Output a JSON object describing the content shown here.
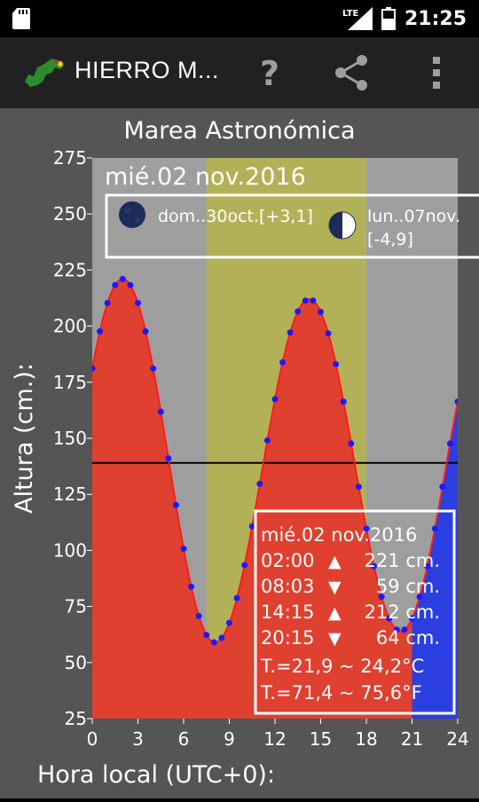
{
  "status_bar": {
    "network": "LTE",
    "time": "21:25"
  },
  "app_bar": {
    "title": "HIERRO M...",
    "logo_icon": "el-hierro-island-logo-icon",
    "help_icon": "help-icon",
    "share_icon": "share-icon",
    "menu_icon": "overflow-menu-icon"
  },
  "colors": {
    "tide_day": "#e0402f",
    "tide_night": "#2b3fe0",
    "curve": "#ff1a1a",
    "points": "#1a1aff",
    "night_band": "#9e9e9e",
    "day_band": "#b3b158"
  },
  "chart_data": {
    "type": "area",
    "title": "Marea Astronómica",
    "date_label": "mié.02 nov.2016",
    "xlabel": "Hora local (UTC+0):",
    "ylabel": "Altura (cm.):",
    "xlim": [
      0,
      24
    ],
    "ylim": [
      25,
      275
    ],
    "xticks": [
      0,
      3,
      6,
      9,
      12,
      15,
      18,
      21,
      24
    ],
    "yticks": [
      25,
      50,
      75,
      100,
      125,
      150,
      175,
      200,
      225,
      250,
      275
    ],
    "mean_level": 139,
    "daylight": [
      7.5,
      18.0
    ],
    "night_fill_from_hour": 21,
    "extremes": [
      {
        "time": 2.0,
        "height": 221
      },
      {
        "time": 8.05,
        "height": 59
      },
      {
        "time": 14.25,
        "height": 212
      },
      {
        "time": 20.25,
        "height": 64
      }
    ],
    "curve_end": {
      "time": 24,
      "height": 168
    },
    "moon_phases": [
      {
        "icon": "new-moon-icon",
        "label": "dom..30oct.[+3,1]"
      },
      {
        "icon": "first-quarter-moon-icon",
        "label_line1": "lun..07nov.",
        "label_line2": "[-4,9]"
      }
    ],
    "info_box": {
      "date": "mié.02 nov.2016",
      "rows": [
        {
          "time": "02:00",
          "symbol": "▲",
          "height": "221 cm."
        },
        {
          "time": "08:03",
          "symbol": "▼",
          "height": "59 cm."
        },
        {
          "time": "14:15",
          "symbol": "▲",
          "height": "212 cm."
        },
        {
          "time": "20:15",
          "symbol": "▼",
          "height": "64 cm."
        }
      ],
      "temp_c": "T.=21,9 ~ 24,2°C",
      "temp_f": "T.=71,4 ~ 75,6°F"
    }
  }
}
